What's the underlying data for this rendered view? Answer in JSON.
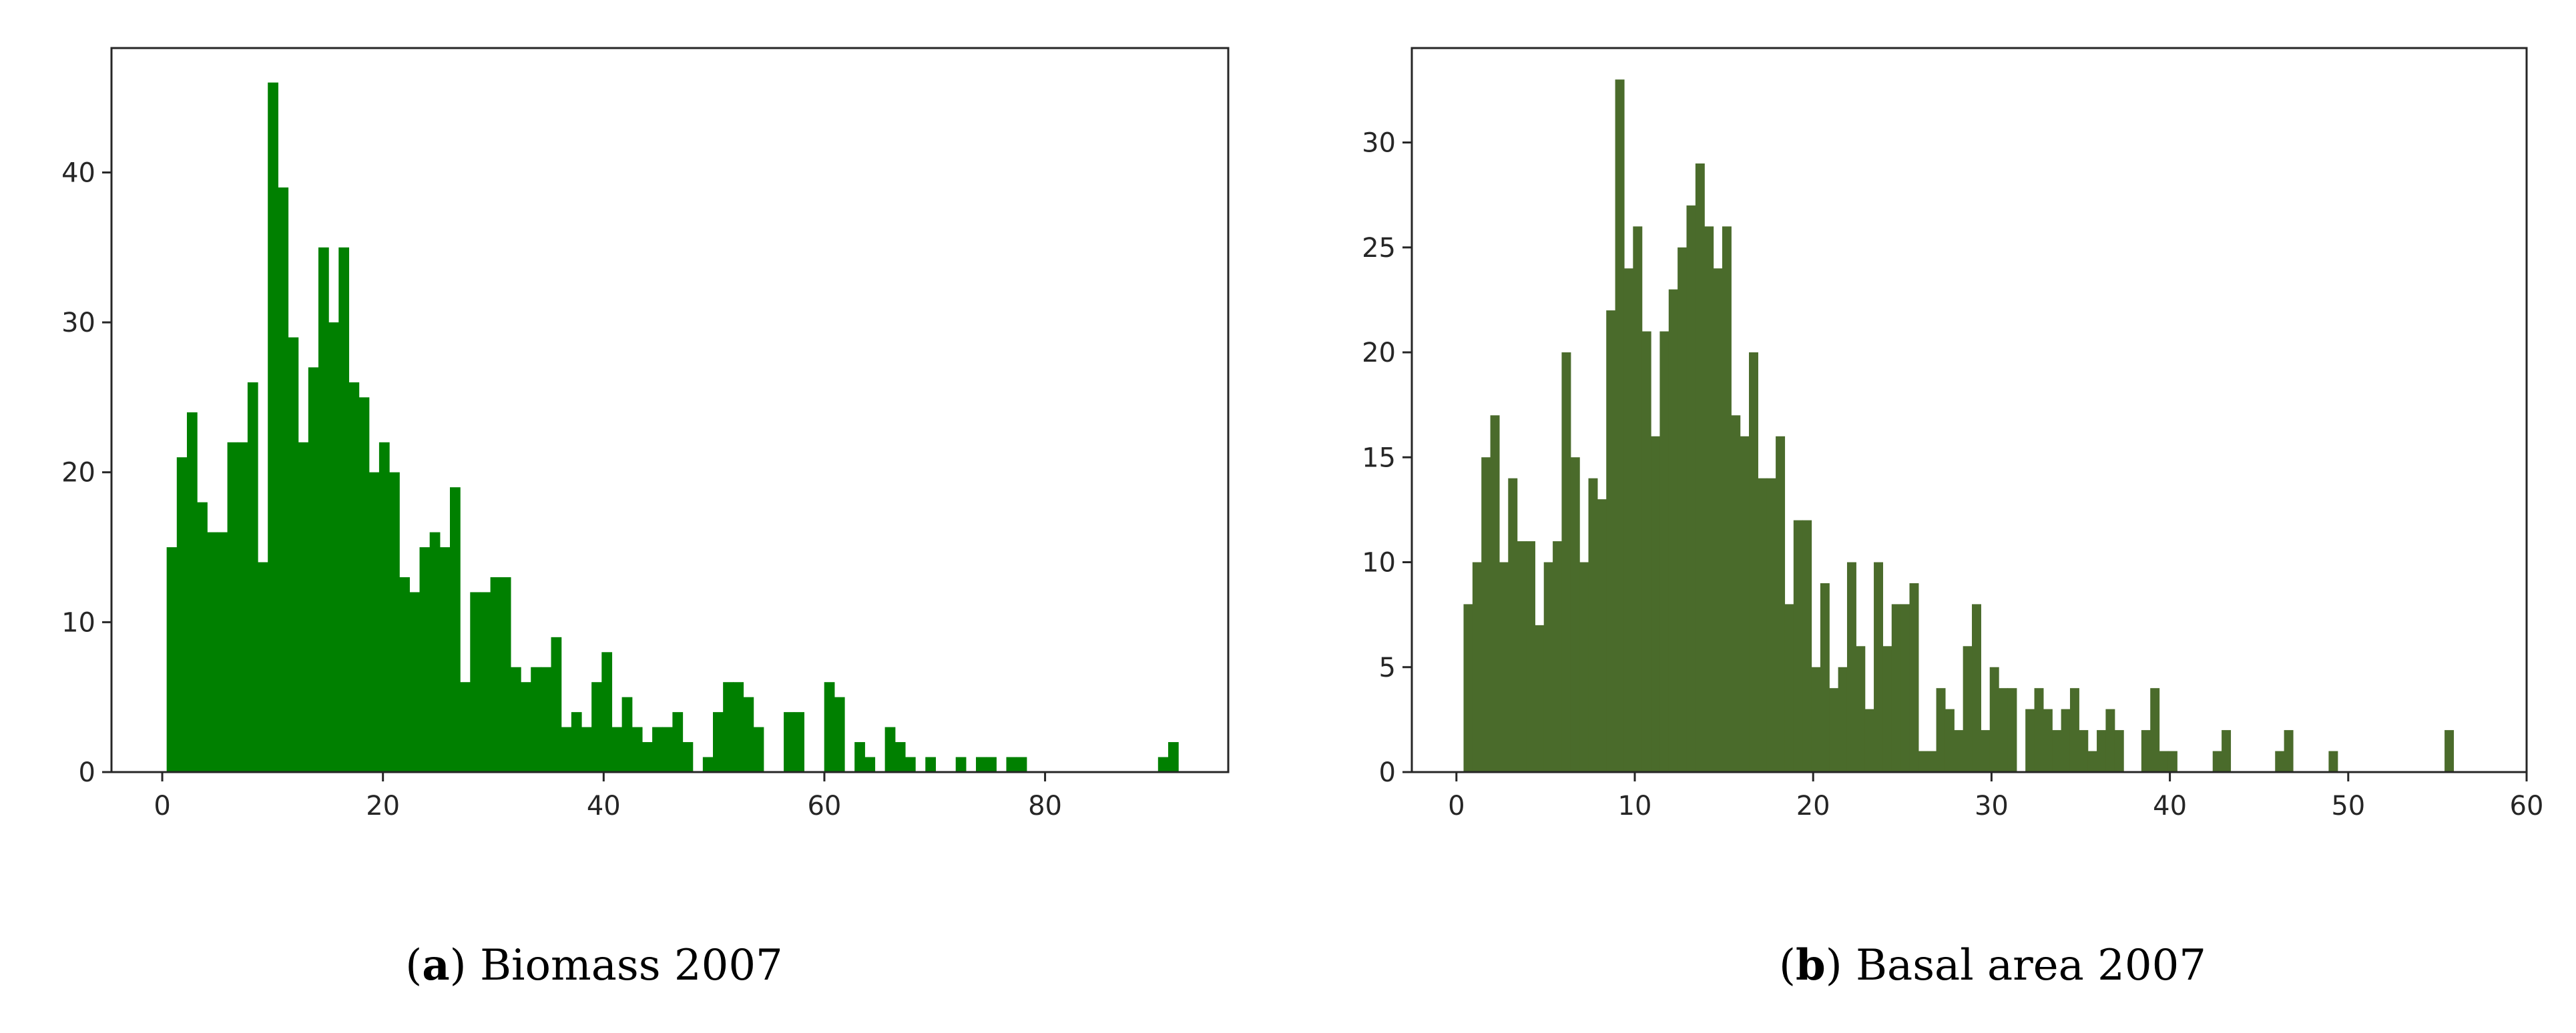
{
  "chart_data": [
    {
      "type": "bar",
      "color": "#008000",
      "caption": {
        "letter": "a",
        "text": "Biomass 2007"
      },
      "xlim": [
        -4.6,
        96.6
      ],
      "ylim": [
        0,
        48.3
      ],
      "xticks": [
        0,
        20,
        40,
        60,
        80
      ],
      "yticks": [
        0,
        10,
        20,
        30,
        40
      ],
      "bin_start": 0.4,
      "bin_width": 0.9167,
      "values": [
        15,
        21,
        24,
        18,
        16,
        16,
        22,
        22,
        26,
        14,
        46,
        39,
        29,
        22,
        27,
        35,
        30,
        35,
        26,
        25,
        20,
        22,
        20,
        13,
        12,
        15,
        16,
        15,
        19,
        6,
        12,
        12,
        13,
        13,
        7,
        6,
        7,
        7,
        9,
        3,
        4,
        3,
        6,
        8,
        3,
        5,
        3,
        2,
        3,
        3,
        4,
        2,
        0,
        1,
        4,
        6,
        6,
        5,
        3,
        0,
        0,
        4,
        4,
        0,
        0,
        6,
        5,
        0,
        2,
        1,
        0,
        3,
        2,
        1,
        0,
        1,
        0,
        0,
        1,
        0,
        1,
        1,
        0,
        1,
        1,
        0,
        0,
        0,
        0,
        0,
        0,
        0,
        0,
        0,
        0,
        0,
        0,
        0,
        1,
        2,
        0,
        0,
        0,
        0,
        0,
        0,
        0,
        0,
        0,
        0,
        0,
        0
      ]
    },
    {
      "type": "bar",
      "color": "#4a6b2b",
      "caption": {
        "letter": "b",
        "text": "Basal area 2007"
      },
      "xlim": [
        -2.5,
        60.0
      ],
      "ylim": [
        0,
        34.5
      ],
      "xticks": [
        0,
        10,
        20,
        30,
        40,
        50,
        60
      ],
      "yticks": [
        0,
        5,
        10,
        15,
        20,
        25,
        30
      ],
      "bin_start": 0.4,
      "bin_width": 0.5,
      "values": [
        8,
        10,
        15,
        17,
        10,
        14,
        11,
        11,
        7,
        10,
        11,
        20,
        15,
        10,
        14,
        13,
        22,
        33,
        24,
        26,
        21,
        16,
        21,
        23,
        25,
        27,
        29,
        26,
        24,
        26,
        17,
        16,
        20,
        14,
        14,
        16,
        8,
        12,
        12,
        5,
        9,
        4,
        5,
        10,
        6,
        3,
        10,
        6,
        8,
        8,
        9,
        1,
        1,
        4,
        3,
        2,
        6,
        8,
        2,
        5,
        4,
        4,
        0,
        3,
        4,
        3,
        2,
        3,
        4,
        2,
        1,
        2,
        3,
        2,
        0,
        0,
        2,
        4,
        1,
        1,
        0,
        0,
        0,
        0,
        1,
        2,
        0,
        0,
        0,
        0,
        0,
        1,
        2,
        0,
        0,
        0,
        0,
        1,
        0,
        0,
        0,
        0,
        0,
        0,
        0,
        0,
        0,
        0,
        0,
        0,
        2,
        0,
        0,
        0,
        0,
        0,
        0,
        0,
        0,
        0,
        0,
        0,
        0,
        0,
        0,
        0,
        0,
        0,
        0,
        0,
        0,
        0,
        0,
        0
      ]
    }
  ]
}
